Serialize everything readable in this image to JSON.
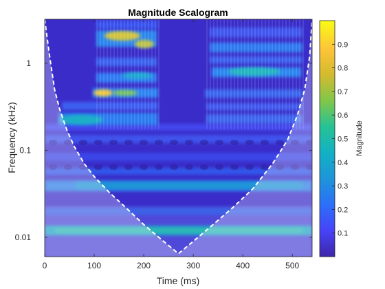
{
  "chart_data": {
    "type": "heatmap",
    "title": "Magnitude Scalogram",
    "xlabel": "Time (ms)",
    "ylabel": "Frequency (kHz)",
    "xlim": [
      0,
      540
    ],
    "ylim": [
      0.006,
      3.2
    ],
    "y_scale": "log",
    "x_ticks": [
      {
        "value": 0,
        "label": "0"
      },
      {
        "value": 100,
        "label": "100"
      },
      {
        "value": 200,
        "label": "200"
      },
      {
        "value": 300,
        "label": "300"
      },
      {
        "value": 400,
        "label": "400"
      },
      {
        "value": 500,
        "label": "500"
      }
    ],
    "y_ticks": [
      {
        "value": 0.01,
        "label": "0.01"
      },
      {
        "value": 0.1,
        "label": "0.1"
      },
      {
        "value": 1,
        "label": "1"
      }
    ],
    "colorbar": {
      "label": "Magnitude",
      "range": [
        0,
        1
      ],
      "ticks": [
        {
          "value": 0.1,
          "label": "0.1"
        },
        {
          "value": 0.2,
          "label": "0.2"
        },
        {
          "value": 0.3,
          "label": "0.3"
        },
        {
          "value": 0.4,
          "label": "0.4"
        },
        {
          "value": 0.5,
          "label": "0.5"
        },
        {
          "value": 0.6,
          "label": "0.6"
        },
        {
          "value": 0.7,
          "label": "0.7"
        },
        {
          "value": 0.8,
          "label": "0.8"
        },
        {
          "value": 0.9,
          "label": "0.9"
        }
      ],
      "colormap": [
        "#3e26a8",
        "#4743f8",
        "#2c6ff9",
        "#1e95d9",
        "#12b1c4",
        "#26c295",
        "#80c74a",
        "#d3ba2e",
        "#fec439",
        "#f9fb15"
      ]
    },
    "cone_of_influence": {
      "style": "white dashed",
      "points": [
        [
          0,
          3.2
        ],
        [
          10,
          1.2
        ],
        [
          20,
          0.5
        ],
        [
          30,
          0.3
        ],
        [
          45,
          0.17
        ],
        [
          60,
          0.11
        ],
        [
          80,
          0.07
        ],
        [
          100,
          0.05
        ],
        [
          130,
          0.033
        ],
        [
          160,
          0.023
        ],
        [
          200,
          0.014
        ],
        [
          240,
          0.009
        ],
        [
          270,
          0.0065
        ],
        [
          300,
          0.009
        ],
        [
          340,
          0.014
        ],
        [
          380,
          0.022
        ],
        [
          420,
          0.036
        ],
        [
          460,
          0.07
        ],
        [
          490,
          0.13
        ],
        [
          510,
          0.25
        ],
        [
          525,
          0.5
        ],
        [
          535,
          1.2
        ],
        [
          540,
          3.2
        ]
      ]
    },
    "features": [
      {
        "t_start": 110,
        "t_end": 125,
        "freq": 0.5,
        "magnitude": 0.82
      },
      {
        "t_start": 140,
        "t_end": 210,
        "freq": 2.2,
        "magnitude": 0.9
      },
      {
        "t_start": 50,
        "t_end": 110,
        "freq": 0.27,
        "magnitude": 0.58
      },
      {
        "t_start": 340,
        "t_end": 420,
        "freq": 0.8,
        "magnitude": 0.62
      },
      {
        "t_start": 300,
        "t_end": 440,
        "freq": 1.8,
        "magnitude": 0.5
      },
      {
        "t_start": 0,
        "t_end": 540,
        "freq": 0.012,
        "magnitude": 0.42
      },
      {
        "t_start": 40,
        "t_end": 510,
        "freq": 0.04,
        "magnitude": 0.38
      }
    ]
  }
}
